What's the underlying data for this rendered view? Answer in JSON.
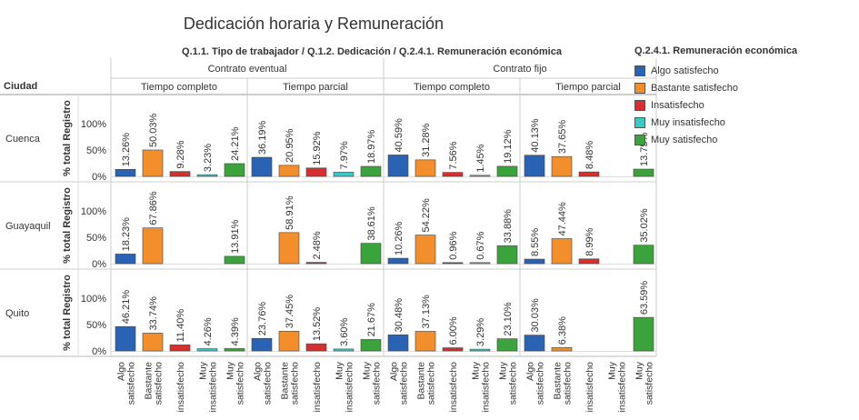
{
  "chart_data": {
    "type": "bar",
    "title": "Dedicación horaria y Remuneración",
    "subtitle": "Q.1.1. Tipo de trabajador / Q.1.2. Dedicación / Q.2.4.1. Remuneración económica",
    "row_header": "Ciudad",
    "ylabel": "% total Registro",
    "y_ticks": [
      "100%",
      "50%",
      "0%"
    ],
    "ylim": [
      0,
      100
    ],
    "rows": [
      "Cuenca",
      "Guayaquil",
      "Quito"
    ],
    "contracts": [
      {
        "name": "Contrato eventual",
        "dedications": [
          "Tiempo completo",
          "Tiempo parcial"
        ]
      },
      {
        "name": "Contrato fijo",
        "dedications": [
          "Tiempo completo",
          "Tiempo parcial"
        ]
      }
    ],
    "legend": {
      "title": "Q.2.4.1. Remuneración económica",
      "position": "right",
      "items": [
        {
          "name": "Algo satisfecho",
          "color": "#2a63b4"
        },
        {
          "name": "Bastante satisfecho",
          "color": "#f28e2b"
        },
        {
          "name": "Insatisfecho",
          "color": "#d62f2f"
        },
        {
          "name": "Muy insatisfecho",
          "color": "#3cc9c4"
        },
        {
          "name": "Muy satisfecho",
          "color": "#3ba33b"
        }
      ]
    },
    "categories": [
      "Algo satisfecho",
      "Bastante satisfecho",
      "Insatisfecho",
      "Muy insatisfecho",
      "Muy satisfecho"
    ],
    "x_tick_labels": [
      [
        "Algo",
        "satisfecho"
      ],
      [
        "Bastante",
        "satisfecho"
      ],
      [
        "insatisfecho"
      ],
      [
        "Muy",
        "insatisfecho"
      ],
      [
        "Muy",
        "satisfecho"
      ]
    ],
    "panels": [
      {
        "row": "Cuenca",
        "contract": "Contrato eventual",
        "dedication": "Tiempo completo",
        "values": [
          13.26,
          50.03,
          9.28,
          3.23,
          24.21
        ],
        "labels": [
          "13.26%",
          "50.03%",
          "9.28%",
          "3.23%",
          "24.21%"
        ]
      },
      {
        "row": "Cuenca",
        "contract": "Contrato eventual",
        "dedication": "Tiempo parcial",
        "values": [
          36.19,
          20.95,
          15.92,
          7.97,
          18.97
        ],
        "labels": [
          "36.19%",
          "20.95%",
          "15.92%",
          "7.97%",
          "18.97%"
        ]
      },
      {
        "row": "Cuenca",
        "contract": "Contrato fijo",
        "dedication": "Tiempo completo",
        "values": [
          40.59,
          31.28,
          7.56,
          1.45,
          19.12
        ],
        "labels": [
          "40.59%",
          "31.28%",
          "7.56%",
          "1.45%",
          "19.12%"
        ]
      },
      {
        "row": "Cuenca",
        "contract": "Contrato fijo",
        "dedication": "Tiempo parcial",
        "values": [
          40.13,
          37.65,
          8.48,
          null,
          13.75
        ],
        "labels": [
          "40.13%",
          "37.65%",
          "8.48%",
          "",
          "13.75%"
        ]
      },
      {
        "row": "Guayaquil",
        "contract": "Contrato eventual",
        "dedication": "Tiempo completo",
        "values": [
          18.23,
          67.86,
          null,
          null,
          13.91
        ],
        "labels": [
          "18.23%",
          "67.86%",
          "",
          "",
          "13.91%"
        ]
      },
      {
        "row": "Guayaquil",
        "contract": "Contrato eventual",
        "dedication": "Tiempo parcial",
        "values": [
          null,
          58.91,
          2.48,
          null,
          38.61
        ],
        "labels": [
          "",
          "58.91%",
          "2.48%",
          "",
          "38.61%"
        ]
      },
      {
        "row": "Guayaquil",
        "contract": "Contrato fijo",
        "dedication": "Tiempo completo",
        "values": [
          10.26,
          54.22,
          0.96,
          0.67,
          33.88
        ],
        "labels": [
          "10.26%",
          "54.22%",
          "0.96%",
          "0.67%",
          "33.88%"
        ]
      },
      {
        "row": "Guayaquil",
        "contract": "Contrato fijo",
        "dedication": "Tiempo parcial",
        "values": [
          8.55,
          47.44,
          8.99,
          null,
          35.02
        ],
        "labels": [
          "8.55%",
          "47.44%",
          "8.99%",
          "",
          "35.02%"
        ]
      },
      {
        "row": "Quito",
        "contract": "Contrato eventual",
        "dedication": "Tiempo completo",
        "values": [
          46.21,
          33.74,
          11.4,
          4.26,
          4.39
        ],
        "labels": [
          "46.21%",
          "33.74%",
          "11.40%",
          "4.26%",
          "4.39%"
        ]
      },
      {
        "row": "Quito",
        "contract": "Contrato eventual",
        "dedication": "Tiempo parcial",
        "values": [
          23.76,
          37.45,
          13.52,
          3.6,
          21.67
        ],
        "labels": [
          "23.76%",
          "37.45%",
          "13.52%",
          "3.60%",
          "21.67%"
        ]
      },
      {
        "row": "Quito",
        "contract": "Contrato fijo",
        "dedication": "Tiempo completo",
        "values": [
          30.48,
          37.13,
          6.0,
          3.29,
          23.1
        ],
        "labels": [
          "30.48%",
          "37.13%",
          "6.00%",
          "3.29%",
          "23.10%"
        ]
      },
      {
        "row": "Quito",
        "contract": "Contrato fijo",
        "dedication": "Tiempo parcial",
        "values": [
          30.03,
          6.38,
          null,
          null,
          63.59
        ],
        "labels": [
          "30.03%",
          "6.38%",
          "",
          "",
          "63.59%"
        ]
      }
    ]
  }
}
